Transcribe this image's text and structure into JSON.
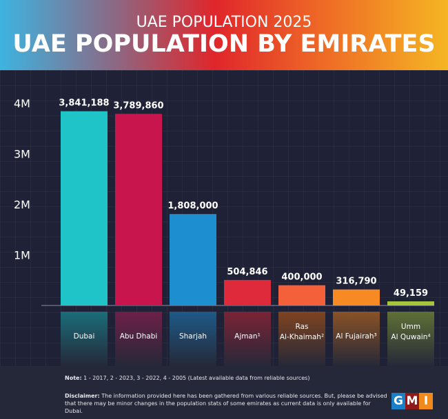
{
  "header": {
    "subtitle": "UAE POPULATION 2025",
    "title": "UAE POPULATION BY EMIRATES"
  },
  "chart_data": {
    "type": "bar",
    "title": "UAE POPULATION BY EMIRATES",
    "categories": [
      "Dubai",
      "Abu Dhabi",
      "Sharjah",
      "Ajman¹",
      "Ras Al-Khaimah²",
      "Al Fujairah³",
      "Umm Al Quwain⁴"
    ],
    "category_lines": [
      [
        "Dubai"
      ],
      [
        "Abu Dhabi"
      ],
      [
        "Sharjah"
      ],
      [
        "Ajman¹"
      ],
      [
        "Ras",
        "Al-Khaimah²"
      ],
      [
        "Al Fujairah³"
      ],
      [
        "Umm",
        "Al Quwain⁴"
      ]
    ],
    "values": [
      3841188,
      3789860,
      1808000,
      504846,
      400000,
      316790,
      49159
    ],
    "data_labels": [
      "3,841,188",
      "3,789,860",
      "1,808,000",
      "504,846",
      "400,000",
      "316,790",
      "49,159"
    ],
    "yticks": [
      1000000,
      2000000,
      3000000,
      4000000
    ],
    "ytick_labels": [
      "1M",
      "2M",
      "3M",
      "4M"
    ],
    "ylim": [
      0,
      4000000
    ],
    "colors": [
      "#1fc4c8",
      "#c8154d",
      "#1d8fd0",
      "#df2a3c",
      "#f4603a",
      "#f78a22",
      "#a6c53b"
    ],
    "label_colors": [
      "#1b6d7a",
      "#6d2048",
      "#1e5a88",
      "#7b2436",
      "#7e4420",
      "#8a5226",
      "#5f7035"
    ],
    "grid": true,
    "legend": "none"
  },
  "footer": {
    "note_label": "Note:",
    "note_text": " 1 - 2017, 2 - 2023, 3 - 2022, 4 - 2005 (Latest available data from reliable sources)",
    "disclaimer_label": "Disclaimer:",
    "disclaimer_text": " The information provided here has been gathered from various reliable sources. But, please be advised that there may be minor changes in the population stats of some emirates as current data is only available for Dubai.",
    "logo": "GMI"
  }
}
